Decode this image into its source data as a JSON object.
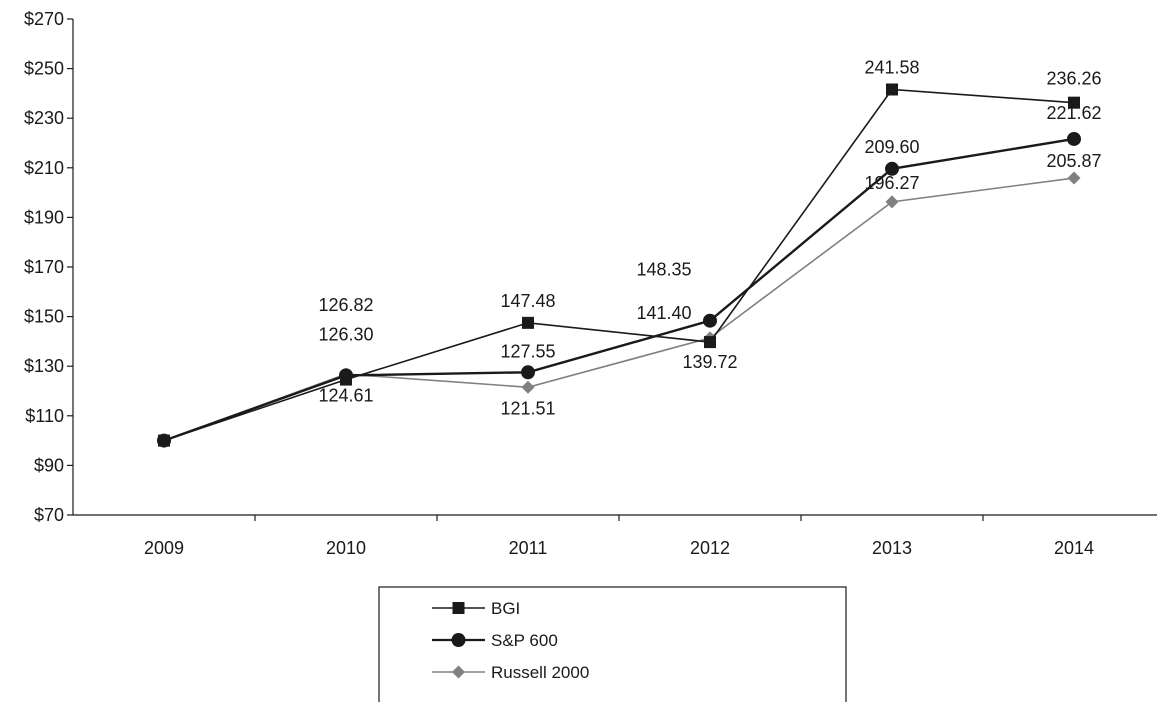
{
  "chart_data": {
    "type": "line",
    "title": "",
    "xlabel": "",
    "ylabel": "",
    "x": [
      "2009",
      "2010",
      "2011",
      "2012",
      "2013",
      "2014"
    ],
    "ylim": [
      70,
      270
    ],
    "yticks": [
      70,
      90,
      110,
      130,
      150,
      170,
      190,
      210,
      230,
      250,
      270
    ],
    "ytick_labels": [
      "$70",
      "$90",
      "$110",
      "$130",
      "$150",
      "$170",
      "$190",
      "$210",
      "$230",
      "$250",
      "$270"
    ],
    "grid": false,
    "legend_position": "bottom-center",
    "series": [
      {
        "name": "BGI",
        "marker": "square",
        "color": "#1a1a1a",
        "values": [
          100,
          124.61,
          147.48,
          139.72,
          241.58,
          236.26
        ],
        "labels": [
          "",
          "124.61",
          "147.48",
          "139.72",
          "241.58",
          "236.26"
        ]
      },
      {
        "name": "S&P 600",
        "marker": "circle",
        "color": "#1a1a1a",
        "values": [
          100,
          126.3,
          127.55,
          148.35,
          209.6,
          221.62
        ],
        "labels": [
          "",
          "126.30",
          "127.55",
          "148.35",
          "209.60",
          "221.62"
        ]
      },
      {
        "name": "Russell 2000",
        "marker": "diamond",
        "color": "#808080",
        "values": [
          100,
          126.82,
          121.51,
          141.4,
          196.27,
          205.87
        ],
        "labels": [
          "",
          "126.82",
          "121.51",
          "141.40",
          "196.27",
          "205.87"
        ]
      }
    ]
  }
}
